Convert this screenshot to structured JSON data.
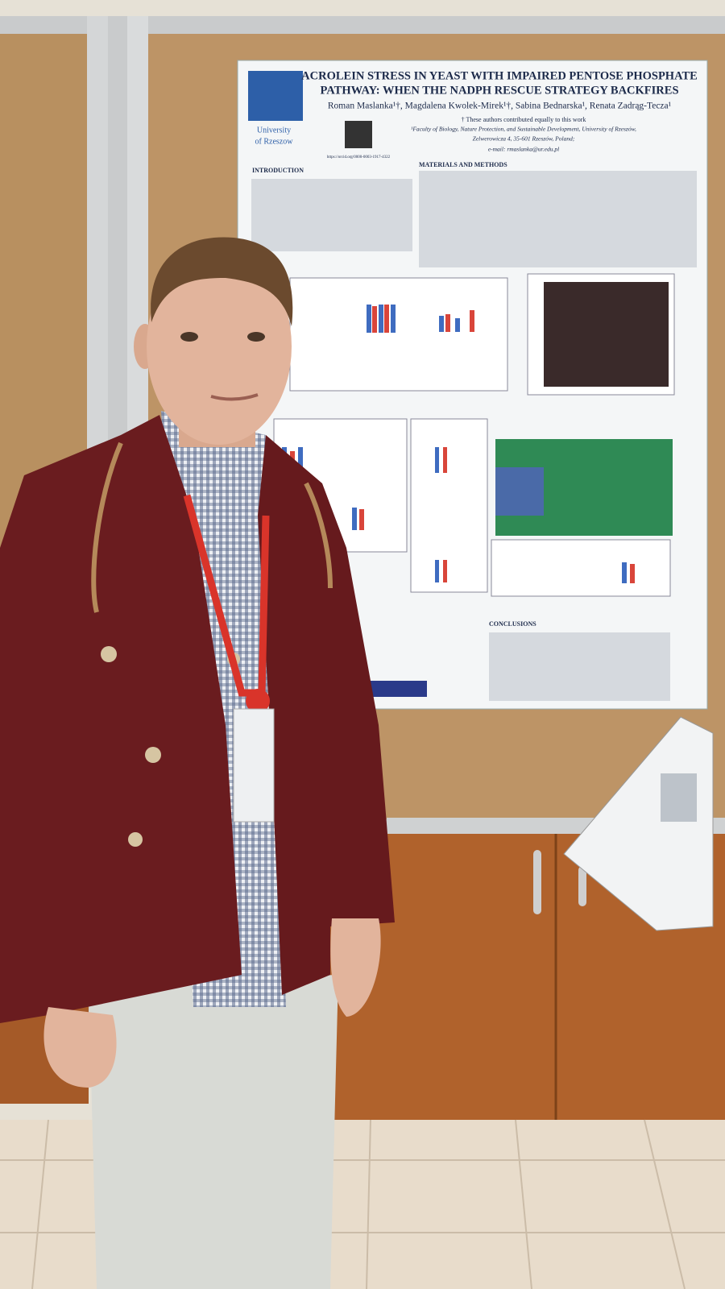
{
  "poster": {
    "title_lines": [
      "ACROLEIN STRESS IN YEAST WITH IMPAIRED PENTOSE PHOSPHATE",
      "PATHWAY: WHEN THE NADPH RESCUE STRATEGY BACKFIRES"
    ],
    "authors": "Roman Maslanka¹†, Magdalena Kwolek-Mirek¹†, Sabina Bednarska¹, Renata Zadrąg-Tecza¹",
    "note": "† These authors contributed equally to this work",
    "affiliation_lines": [
      "¹Faculty of Biology, Nature Protection, and Sustainable Development, University of Rzeszów,",
      "Zelwerowicza 4, 35-601 Rzeszów, Poland;"
    ],
    "email": "e-mail: rmaslanka@ur.edu.pl",
    "university_lines": [
      "University",
      "of Rzeszow"
    ],
    "orcid": "https://orcid.org/0000-0003-1917-4322",
    "sections": [
      "INTRODUCTION",
      "MATERIALS AND METHODS",
      "CONCLUSIONS"
    ]
  }
}
